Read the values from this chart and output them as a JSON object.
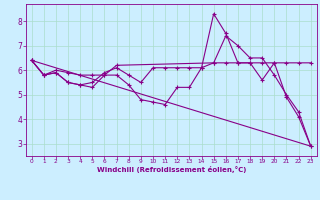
{
  "background_color": "#cceeff",
  "grid_color": "#aaddcc",
  "line_color": "#880088",
  "xlabel": "Windchill (Refroidissement éolien,°C)",
  "xlim": [
    -0.5,
    23.5
  ],
  "ylim": [
    2.5,
    8.7
  ],
  "yticks": [
    3,
    4,
    5,
    6,
    7,
    8
  ],
  "xticks": [
    0,
    1,
    2,
    3,
    4,
    5,
    6,
    7,
    8,
    9,
    10,
    11,
    12,
    13,
    14,
    15,
    16,
    17,
    18,
    19,
    20,
    21,
    22,
    23
  ],
  "series": [
    {
      "x": [
        0,
        1,
        2,
        3,
        4,
        5,
        6,
        7,
        8,
        9,
        10,
        11,
        12,
        13,
        14,
        15,
        16,
        17,
        18,
        19,
        20,
        21,
        22,
        23
      ],
      "y": [
        6.4,
        5.8,
        5.9,
        5.5,
        5.4,
        5.3,
        5.8,
        5.8,
        5.4,
        4.8,
        4.7,
        4.6,
        5.3,
        5.3,
        6.1,
        8.3,
        7.5,
        6.3,
        6.3,
        5.6,
        6.3,
        4.9,
        4.1,
        2.9
      ],
      "marker": "+"
    },
    {
      "x": [
        0,
        1,
        2,
        3,
        4,
        5,
        6,
        7,
        8,
        9,
        10,
        11,
        12,
        13,
        14,
        15,
        16,
        17,
        18,
        19,
        20,
        21,
        22,
        23
      ],
      "y": [
        6.4,
        5.8,
        5.9,
        5.5,
        5.4,
        5.5,
        5.9,
        6.1,
        5.8,
        5.5,
        6.1,
        6.1,
        6.1,
        6.1,
        6.1,
        6.3,
        6.3,
        6.3,
        6.3,
        6.3,
        6.3,
        6.3,
        6.3,
        6.3
      ],
      "marker": "+"
    },
    {
      "x": [
        0,
        23
      ],
      "y": [
        6.4,
        2.9
      ],
      "marker": null
    },
    {
      "x": [
        0,
        1,
        2,
        3,
        4,
        5,
        6,
        7,
        15,
        16,
        17,
        18,
        19,
        20,
        21,
        22,
        23
      ],
      "y": [
        6.4,
        5.8,
        6.0,
        5.9,
        5.8,
        5.8,
        5.8,
        6.2,
        6.3,
        7.4,
        7.0,
        6.5,
        6.5,
        5.8,
        5.0,
        4.3,
        2.9
      ],
      "marker": "+"
    }
  ]
}
